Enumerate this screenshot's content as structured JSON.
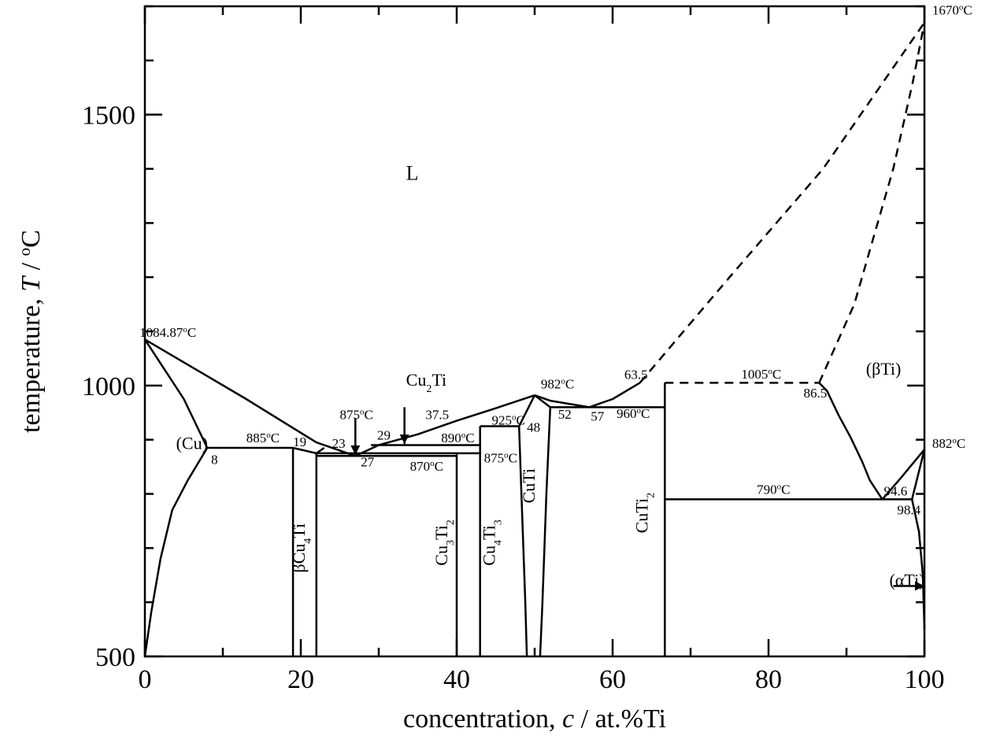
{
  "chart_data": {
    "type": "line",
    "xlabel": "concentration, c / at.%Ti",
    "ylabel": "temperature, T / oC",
    "xlim": [
      0,
      100
    ],
    "ylim": [
      500,
      1700
    ],
    "x_ticks": [
      0,
      20,
      40,
      60,
      80,
      100
    ],
    "y_ticks": [
      500,
      1000,
      1500
    ],
    "grid": false,
    "legend": "none",
    "lines": [
      {
        "style": "solid",
        "points": [
          [
            0,
            1085
          ],
          [
            13,
            975
          ],
          [
            22,
            895
          ],
          [
            27,
            870
          ]
        ]
      },
      {
        "style": "solid",
        "points": [
          [
            27,
            870
          ],
          [
            30,
            890
          ],
          [
            35,
            910
          ],
          [
            40,
            935
          ],
          [
            45,
            958
          ],
          [
            50,
            982
          ]
        ]
      },
      {
        "style": "solid",
        "points": [
          [
            50,
            982
          ],
          [
            52,
            972
          ],
          [
            57,
            960
          ],
          [
            60,
            975
          ],
          [
            63.5,
            1005
          ]
        ]
      },
      {
        "style": "solid",
        "points": [
          [
            0,
            1085
          ],
          [
            2.5,
            1030
          ],
          [
            5,
            975
          ],
          [
            8,
            885
          ]
        ]
      },
      {
        "style": "solid",
        "points": [
          [
            0,
            500
          ],
          [
            0.8,
            580
          ],
          [
            2,
            680
          ],
          [
            3.5,
            770
          ],
          [
            5.5,
            825
          ],
          [
            8,
            885
          ]
        ]
      },
      {
        "style": "solid",
        "points": [
          [
            8,
            885
          ],
          [
            19,
            885
          ]
        ]
      },
      {
        "style": "solid",
        "points": [
          [
            19,
            885
          ],
          [
            22,
            875
          ],
          [
            23,
            885
          ]
        ]
      },
      {
        "style": "solid",
        "points": [
          [
            19,
            500
          ],
          [
            19,
            885
          ]
        ]
      },
      {
        "style": "solid",
        "points": [
          [
            22,
            500
          ],
          [
            22,
            875
          ]
        ]
      },
      {
        "style": "solid",
        "points": [
          [
            22,
            875
          ],
          [
            40,
            875
          ]
        ]
      },
      {
        "style": "solid",
        "points": [
          [
            22,
            870
          ],
          [
            40,
            870
          ]
        ]
      },
      {
        "style": "solid",
        "points": [
          [
            29,
            890
          ],
          [
            43,
            890
          ]
        ]
      },
      {
        "style": "solid",
        "points": [
          [
            40,
            500
          ],
          [
            40,
            875
          ]
        ]
      },
      {
        "style": "solid",
        "points": [
          [
            40,
            875
          ],
          [
            43,
            875
          ]
        ]
      },
      {
        "style": "solid",
        "points": [
          [
            43,
            500
          ],
          [
            43,
            925
          ]
        ]
      },
      {
        "style": "solid",
        "points": [
          [
            43,
            925
          ],
          [
            48,
            925
          ]
        ]
      },
      {
        "style": "solid",
        "points": [
          [
            48,
            925
          ],
          [
            50,
            982
          ]
        ]
      },
      {
        "style": "solid",
        "points": [
          [
            48,
            925
          ],
          [
            48.3,
            800
          ],
          [
            48.8,
            600
          ],
          [
            49,
            500
          ]
        ]
      },
      {
        "style": "solid",
        "points": [
          [
            50,
            982
          ],
          [
            52,
            960
          ]
        ]
      },
      {
        "style": "solid",
        "points": [
          [
            52,
            960
          ],
          [
            51.5,
            800
          ],
          [
            51,
            600
          ],
          [
            50.7,
            500
          ]
        ]
      },
      {
        "style": "solid",
        "points": [
          [
            52,
            960
          ],
          [
            66.7,
            960
          ]
        ]
      },
      {
        "style": "solid",
        "points": [
          [
            66.7,
            500
          ],
          [
            66.7,
            1005
          ]
        ]
      },
      {
        "style": "solid",
        "points": [
          [
            66.7,
            790
          ],
          [
            98.4,
            790
          ]
        ]
      },
      {
        "style": "solid",
        "points": [
          [
            86.5,
            1005
          ],
          [
            87.5,
            990
          ],
          [
            89,
            945
          ],
          [
            90.5,
            905
          ],
          [
            92,
            860
          ],
          [
            93,
            825
          ],
          [
            94.6,
            790
          ]
        ]
      },
      {
        "style": "solid",
        "points": [
          [
            94.6,
            790
          ],
          [
            97,
            830
          ],
          [
            100,
            882
          ]
        ]
      },
      {
        "style": "solid",
        "points": [
          [
            98.4,
            790
          ],
          [
            100,
            882
          ]
        ]
      },
      {
        "style": "solid",
        "points": [
          [
            98.4,
            790
          ],
          [
            99.3,
            730
          ],
          [
            99.8,
            650
          ],
          [
            100,
            550
          ]
        ]
      },
      {
        "style": "dashed",
        "points": [
          [
            63.5,
            1005
          ],
          [
            75,
            1200
          ],
          [
            87,
            1400
          ],
          [
            100,
            1670
          ]
        ]
      },
      {
        "style": "dashed",
        "points": [
          [
            66.7,
            1005
          ],
          [
            86.5,
            1005
          ]
        ]
      },
      {
        "style": "dashed",
        "points": [
          [
            86.5,
            1005
          ],
          [
            91,
            1150
          ],
          [
            96,
            1400
          ],
          [
            98.5,
            1560
          ],
          [
            100,
            1670
          ]
        ]
      }
    ],
    "annotations": [
      {
        "text": "L",
        "x": 33.5,
        "y": 1380
      },
      {
        "text": "(Cu)",
        "x": 4,
        "y": 883
      },
      {
        "text": "(βTi)",
        "x": 92.5,
        "y": 1020
      },
      {
        "text": "(αTi)",
        "x": 95.5,
        "y": 630
      },
      {
        "text": "1084.87°C",
        "x": -0.7,
        "y": 1090
      },
      {
        "text": "1670°C",
        "x": 101,
        "y": 1685
      },
      {
        "text": "882°C",
        "x": 101,
        "y": 885
      },
      {
        "text": "885°C",
        "x": 13,
        "y": 895
      },
      {
        "text": "875°C",
        "x": 25,
        "y": 938
      },
      {
        "text": "890°C",
        "x": 38,
        "y": 895
      },
      {
        "text": "875°C",
        "x": 43.5,
        "y": 858
      },
      {
        "text": "870°C",
        "x": 34,
        "y": 843
      },
      {
        "text": "925°C",
        "x": 44.5,
        "y": 928
      },
      {
        "text": "982°C",
        "x": 50.8,
        "y": 995
      },
      {
        "text": "960°C",
        "x": 60.5,
        "y": 940
      },
      {
        "text": "1005°C",
        "x": 76.5,
        "y": 1013
      },
      {
        "text": "790°C",
        "x": 78.5,
        "y": 800
      },
      {
        "text": "Cu2Ti",
        "x": 33.5,
        "y": 1000
      },
      {
        "text": "βCu4Ti",
        "x": 20.5,
        "y": 700
      },
      {
        "text": "Cu3Ti2",
        "x": 38.8,
        "y": 710
      },
      {
        "text": "Cu4Ti3",
        "x": 44.9,
        "y": 710
      },
      {
        "text": "CuTi",
        "x": 50,
        "y": 815
      },
      {
        "text": "CuTi2",
        "x": 64.5,
        "y": 765
      },
      {
        "text": "8",
        "x": 8.5,
        "y": 855
      },
      {
        "text": "19",
        "x": 19,
        "y": 888
      },
      {
        "text": "23",
        "x": 24,
        "y": 885
      },
      {
        "text": "27",
        "x": 27.7,
        "y": 851
      },
      {
        "text": "29",
        "x": 29.8,
        "y": 900
      },
      {
        "text": "37.5",
        "x": 36,
        "y": 938
      },
      {
        "text": "48",
        "x": 49,
        "y": 915
      },
      {
        "text": "52",
        "x": 53,
        "y": 939
      },
      {
        "text": "57",
        "x": 57.2,
        "y": 935
      },
      {
        "text": "63.5",
        "x": 61.5,
        "y": 1012
      },
      {
        "text": "86.5",
        "x": 84.5,
        "y": 978
      },
      {
        "text": "94.6",
        "x": 94.8,
        "y": 797
      },
      {
        "text": "98.4",
        "x": 96.5,
        "y": 762
      }
    ],
    "arrows": [
      {
        "label": "875°C",
        "from": [
          27,
          940
        ],
        "to": [
          27,
          872
        ]
      },
      {
        "label": "Cu2Ti",
        "from": [
          33.3,
          960
        ],
        "to": [
          33.3,
          892
        ]
      },
      {
        "label": "(αTi)",
        "from": [
          96,
          630
        ],
        "to": [
          100,
          630
        ]
      }
    ]
  }
}
